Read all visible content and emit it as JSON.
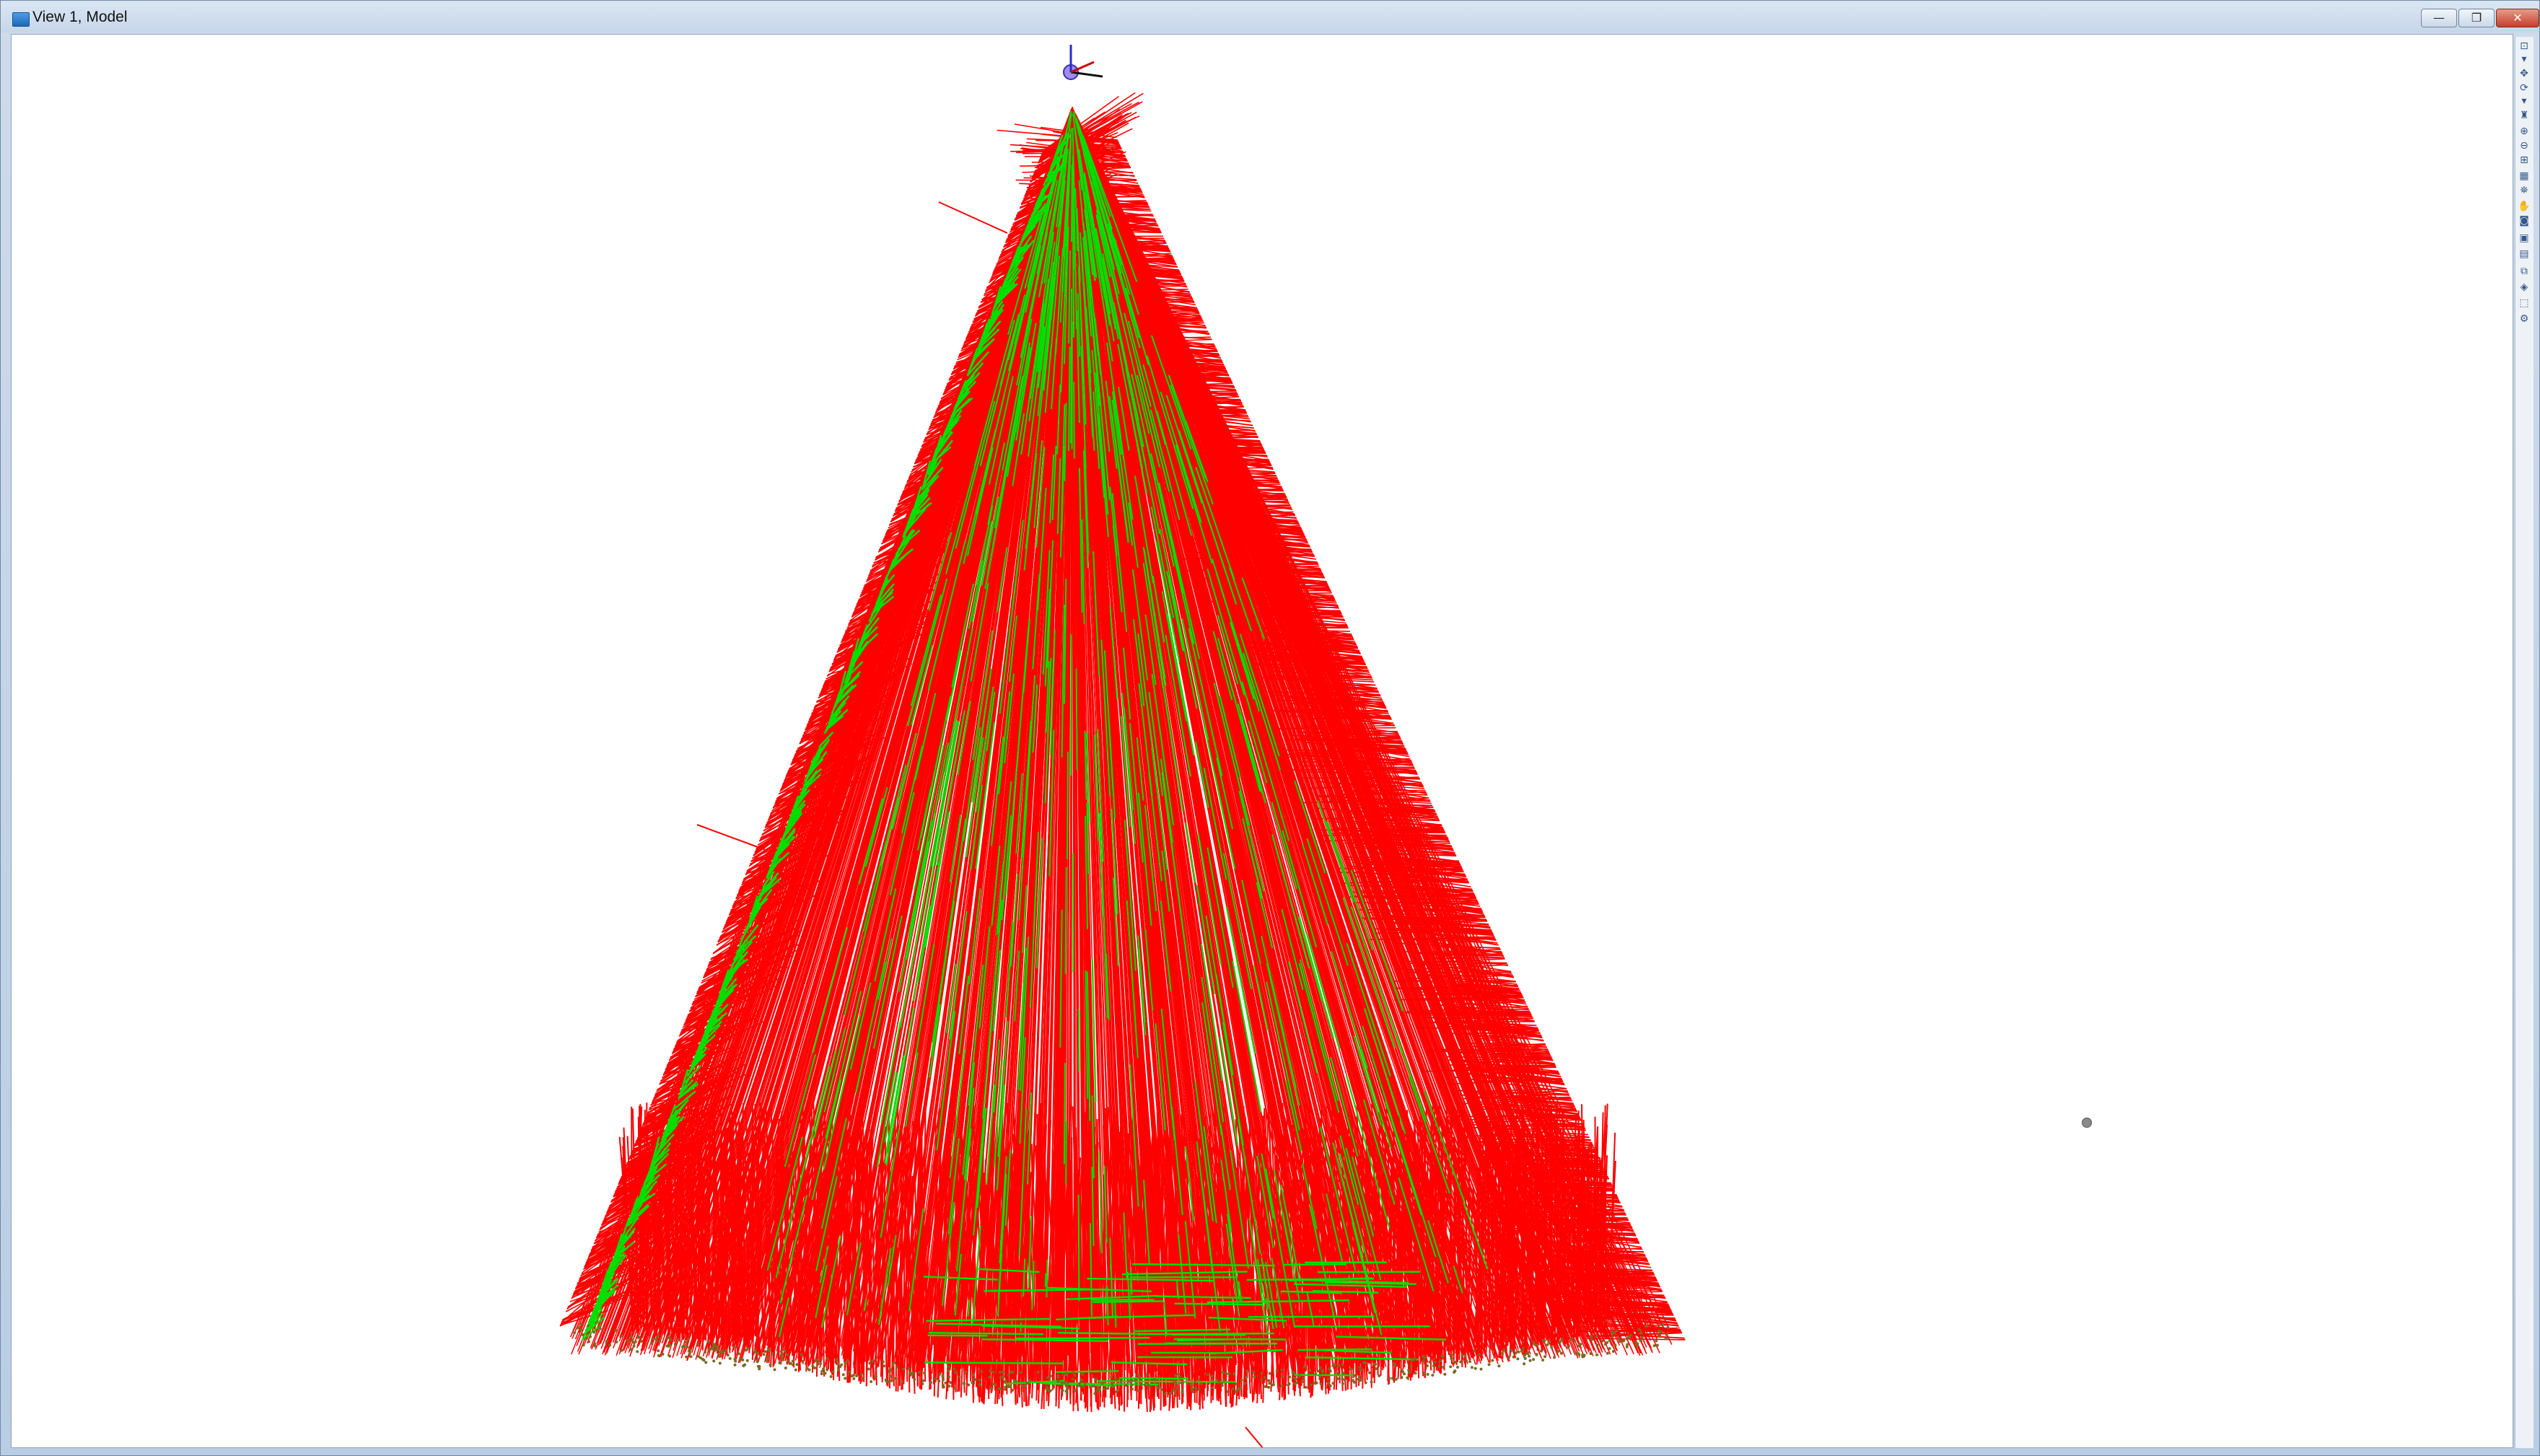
{
  "window": {
    "title": "View 1, Model",
    "icon": "view-window-icon",
    "controls": {
      "minimize": "—",
      "maximize": "❐",
      "close": "✕"
    }
  },
  "viewport": {
    "background_color": "#ffffff",
    "series_colors": {
      "red_members": "#ff0000",
      "green_members": "#00e000",
      "nodes": "#7a6a20"
    },
    "view_cube_icon": "axis-triad-icon"
  },
  "toolbar": {
    "tools": [
      {
        "name": "zoom-window-icon",
        "glyph": "⊡"
      },
      {
        "name": "dropdown-arrow-icon",
        "glyph": "▾"
      },
      {
        "name": "pan-3d-icon",
        "glyph": "✥"
      },
      {
        "name": "rotate-view-icon",
        "glyph": "⟳"
      },
      {
        "name": "dropdown-arrow-icon",
        "glyph": "▾"
      },
      {
        "name": "user-render-icon",
        "glyph": "♜"
      },
      {
        "name": "zoom-in-icon",
        "glyph": "⊕"
      },
      {
        "name": "zoom-out-icon",
        "glyph": "⊖"
      },
      {
        "name": "fit-view-icon",
        "glyph": "⊞"
      },
      {
        "name": "select-area-icon",
        "glyph": "▦"
      },
      {
        "name": "walk-through-icon",
        "glyph": "⛯"
      },
      {
        "name": "hand-pan-icon",
        "glyph": "✋"
      },
      {
        "name": "camera-icon",
        "glyph": "◙"
      },
      {
        "name": "display-options-icon",
        "glyph": "▣"
      },
      {
        "name": "view-properties-icon",
        "glyph": "▤"
      },
      {
        "name": "copy-view-icon",
        "glyph": "⧉"
      },
      {
        "name": "render-mode-icon",
        "glyph": "◈"
      },
      {
        "name": "clip-volume-icon",
        "glyph": "⬚"
      },
      {
        "name": "settings-icon",
        "glyph": "⚙"
      }
    ]
  }
}
